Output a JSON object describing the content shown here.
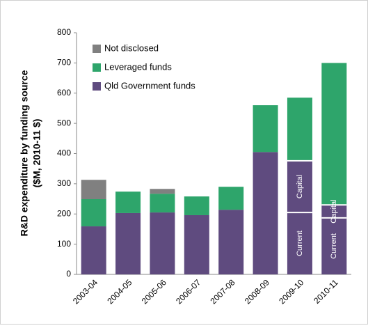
{
  "chart_data": {
    "type": "stacked_bar",
    "y_label": [
      "R&D expenditure by funding source",
      "($M, 2010-11 $)"
    ],
    "categories": [
      "2003-04",
      "2004-05",
      "2005-06",
      "2006-07",
      "2007-08",
      "2008-09",
      "2009-10",
      "2010-11"
    ],
    "series": [
      {
        "name": "Qld Government funds",
        "color": "#5f4b7f",
        "values": [
          159,
          203,
          205,
          196,
          214,
          405,
          376,
          230
        ]
      },
      {
        "name": "Leveraged funds",
        "color": "#2ea56b",
        "values": [
          90,
          71,
          62,
          62,
          76,
          155,
          209,
          470
        ]
      },
      {
        "name": "Not disclosed",
        "color": "#808080",
        "values": [
          64,
          0,
          16,
          0,
          0,
          0,
          0,
          0
        ]
      }
    ],
    "annotations": [
      {
        "category_index": 6,
        "segments": [
          {
            "text": "Current",
            "value": 205
          },
          {
            "text": "Capital",
            "value": 171
          }
        ]
      },
      {
        "category_index": 7,
        "segments": [
          {
            "text": "Current",
            "value": 187
          },
          {
            "text": "Capital",
            "value": 43
          }
        ]
      }
    ],
    "ylim": [
      0,
      800
    ],
    "yticks": [
      0,
      100,
      200,
      300,
      400,
      500,
      600,
      700,
      800
    ],
    "legend": "top-left"
  }
}
